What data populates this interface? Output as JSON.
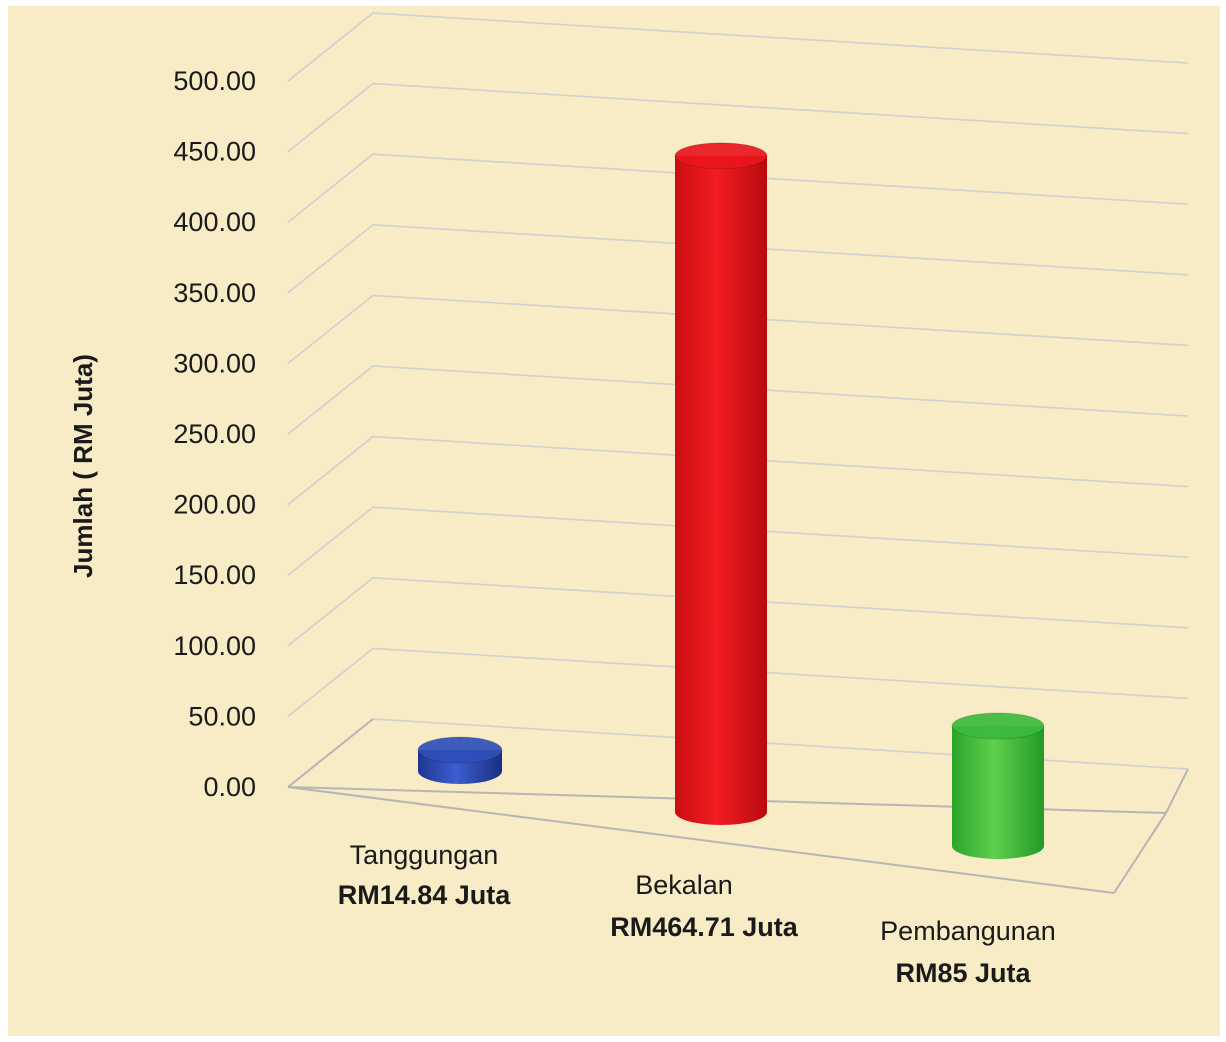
{
  "chart_data": {
    "type": "bar",
    "style": "3d-cylinder",
    "title": "",
    "xlabel": "",
    "ylabel": "Jumlah ( RM Juta)",
    "ylim": [
      0,
      500
    ],
    "yticks": [
      "0.00",
      "50.00",
      "100.00",
      "150.00",
      "200.00",
      "250.00",
      "300.00",
      "350.00",
      "400.00",
      "450.00",
      "500.00"
    ],
    "grid": true,
    "legend": "none",
    "categories": [
      "Tanggungan",
      "Bekalan",
      "Pembangunan"
    ],
    "value_labels": [
      "RM14.84 Juta",
      "RM464.71 Juta",
      "RM85 Juta"
    ],
    "values": [
      14.84,
      464.71,
      85
    ],
    "colors": [
      "#2f4fb8",
      "#e8161c",
      "#3cba3c"
    ]
  }
}
